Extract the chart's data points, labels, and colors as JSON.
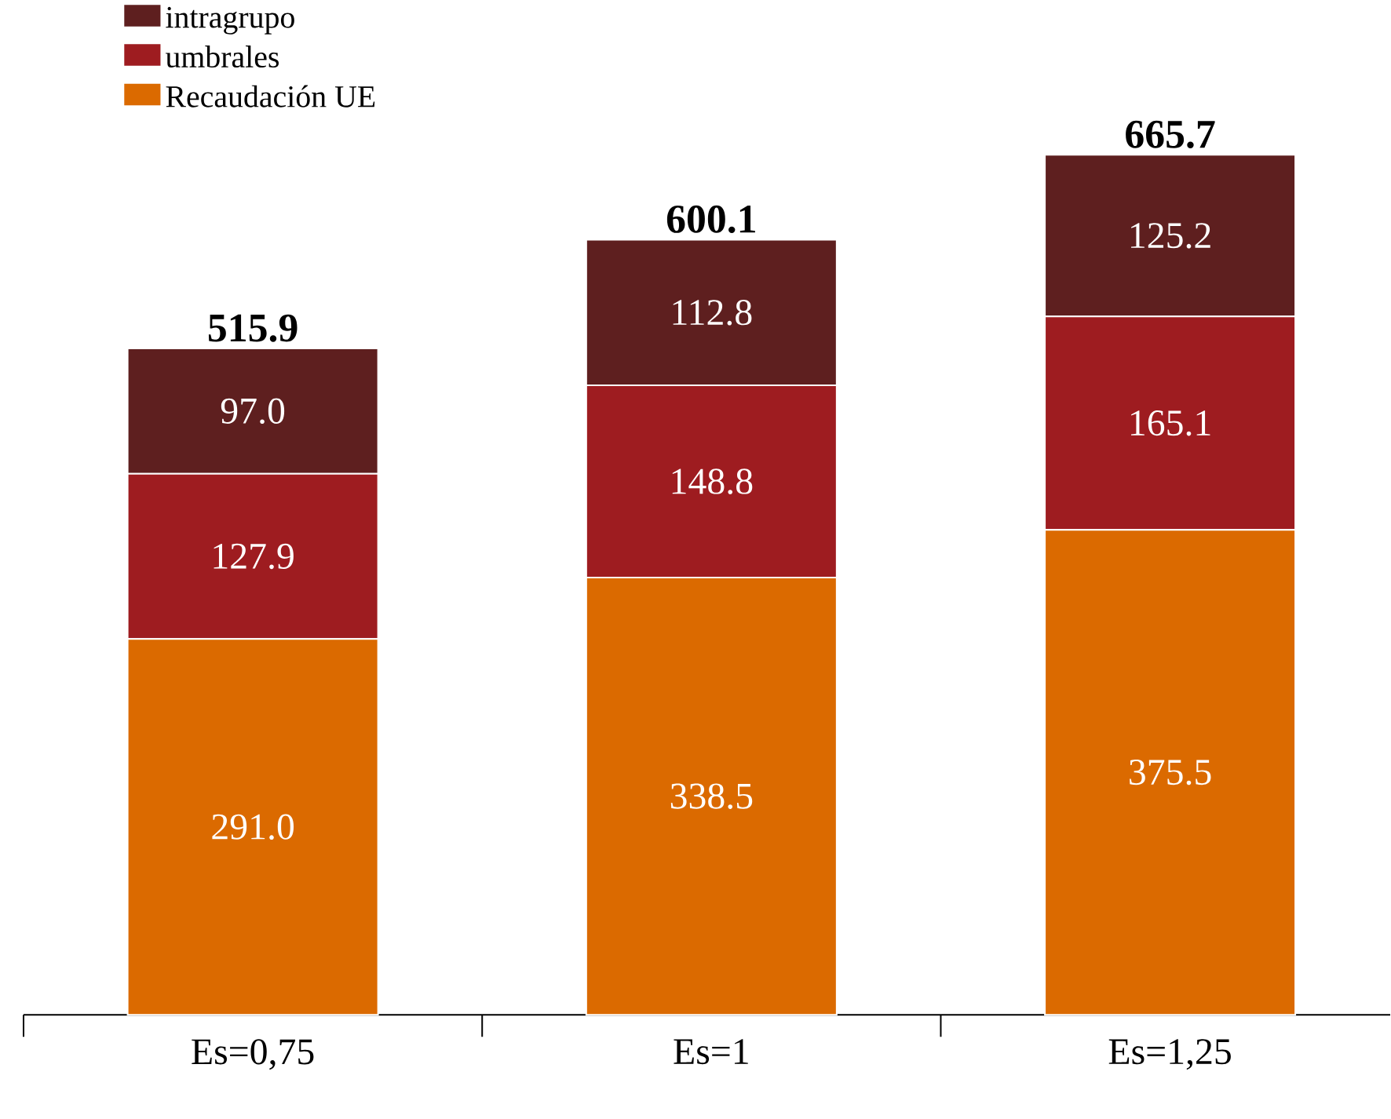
{
  "chart_data": {
    "type": "bar",
    "stacked": true,
    "categories": [
      "Es=0,75",
      "Es=1",
      "Es=1,25"
    ],
    "series": [
      {
        "name": "Recaudación UE",
        "color": "#db6a00",
        "values": [
          291.0,
          338.5,
          375.5
        ],
        "value_labels": [
          "291.0",
          "338.5",
          "375.5"
        ]
      },
      {
        "name": "umbrales",
        "color": "#9e1c20",
        "values": [
          127.9,
          148.8,
          165.1
        ],
        "value_labels": [
          "127.9",
          "148.8",
          "165.1"
        ]
      },
      {
        "name": "intragrupo",
        "color": "#5e1f1f",
        "values": [
          97.0,
          112.8,
          125.2
        ],
        "value_labels": [
          "97.0",
          "112.8",
          "125.2"
        ]
      }
    ],
    "totals": [
      "515.9",
      "600.1",
      "665.7"
    ],
    "legend": "top left"
  }
}
